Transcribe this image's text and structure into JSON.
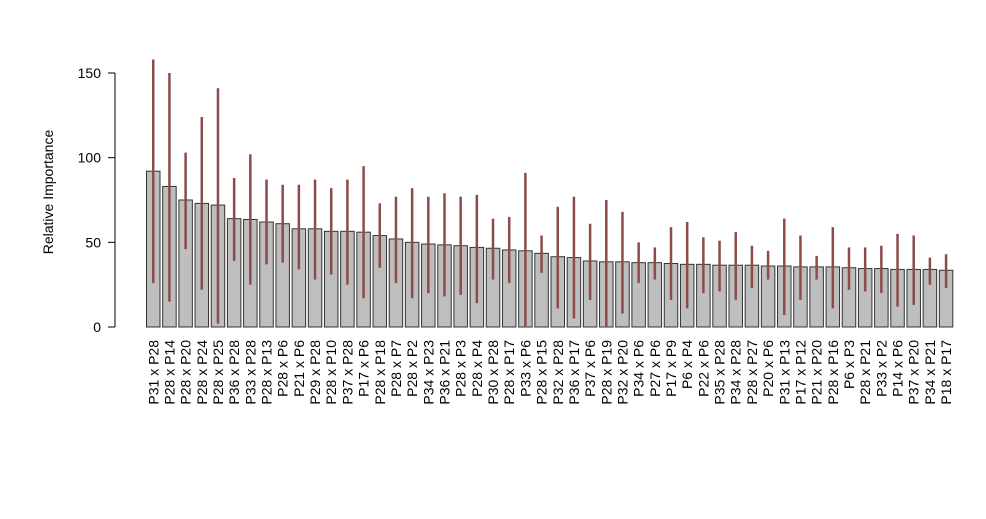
{
  "chart_data": {
    "type": "bar",
    "title": "",
    "xlabel": "",
    "ylabel": "Relative Importance",
    "ylim": [
      0,
      160
    ],
    "yticks": [
      0,
      50,
      100,
      150
    ],
    "grid": false,
    "colors": {
      "bar_fill": "#bebebe",
      "bar_stroke": "#333333",
      "error_bar": "#8b4c4c"
    },
    "categories": [
      "P31 x P28",
      "P28 x P14",
      "P28 x P20",
      "P28 x P24",
      "P28 x P25",
      "P36 x P28",
      "P33 x P28",
      "P28 x P13",
      "P28 x P6",
      "P21 x P6",
      "P29 x P28",
      "P28 x P10",
      "P37 x P28",
      "P17 x P6",
      "P28 x P18",
      "P28 x P7",
      "P28 x P2",
      "P34 x P23",
      "P36 x P21",
      "P28 x P3",
      "P28 x P4",
      "P30 x P28",
      "P28 x P17",
      "P33 x P6",
      "P28 x P15",
      "P32 x P28",
      "P36 x P17",
      "P37 x P6",
      "P28 x P19",
      "P32 x P20",
      "P34 x P6",
      "P27 x P6",
      "P17 x P9",
      "P6 x P4",
      "P22 x P6",
      "P35 x P28",
      "P34 x P28",
      "P28 x P27",
      "P20 x P6",
      "P31 x P13",
      "P17 x P12",
      "P21 x P20",
      "P28 x P16",
      "P6 x P3",
      "P28 x P21",
      "P33 x P2",
      "P14 x P6",
      "P37 x P20",
      "P34 x P21",
      "P18 x P17"
    ],
    "values": [
      92,
      83,
      75,
      73,
      72,
      64,
      63.5,
      62,
      61,
      58,
      58,
      56.5,
      56.5,
      56,
      54,
      52,
      50,
      49,
      48.5,
      48,
      47,
      46.5,
      45.5,
      45,
      43.5,
      41.5,
      41,
      39,
      38.5,
      38.5,
      38,
      38,
      37.5,
      37,
      37,
      36.5,
      36.5,
      36.5,
      36,
      36,
      35.5,
      35.5,
      35.5,
      35,
      34.5,
      34.5,
      34,
      34,
      34,
      33.5
    ],
    "error_low": [
      26,
      15,
      46,
      22,
      2,
      39,
      25,
      37,
      38,
      34,
      28,
      31,
      25,
      17,
      35,
      26,
      17,
      20,
      18,
      19,
      14,
      28,
      26,
      0,
      32,
      11,
      5,
      16,
      0,
      8,
      26,
      28,
      16,
      11,
      20,
      21,
      16,
      23,
      28,
      7,
      16,
      28,
      11,
      22,
      21,
      20,
      12,
      13,
      25,
      23
    ],
    "error_high": [
      158,
      150,
      103,
      124,
      141,
      88,
      102,
      87,
      84,
      84,
      87,
      82,
      87,
      95,
      73,
      77,
      82,
      77,
      79,
      77,
      78,
      64,
      65,
      91,
      54,
      71,
      77,
      61,
      75,
      68,
      50,
      47,
      59,
      62,
      53,
      51,
      56,
      48,
      45,
      64,
      54,
      42,
      59,
      47,
      47,
      48,
      55,
      54,
      41,
      43
    ]
  }
}
